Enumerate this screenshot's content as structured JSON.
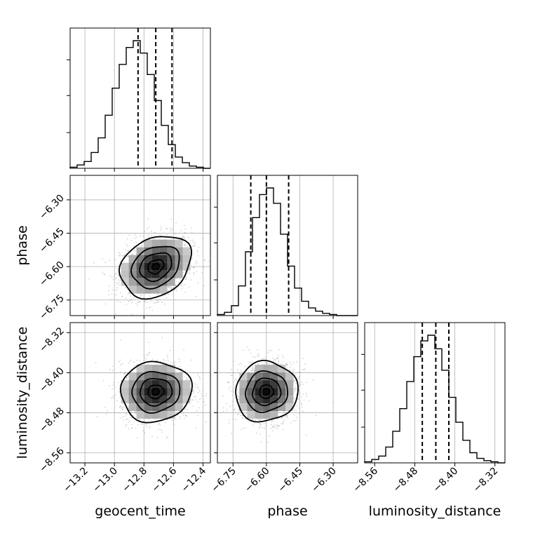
{
  "chart_data": {
    "type": "corner",
    "parameters": [
      {
        "name": "geocent_time",
        "label": "geocent_time",
        "range": [
          -13.3,
          -12.35
        ],
        "ticks": [
          -13.2,
          -13.0,
          -12.8,
          -12.6,
          -12.4
        ],
        "tick_labels": [
          "−13.2",
          "−13.0",
          "−12.8",
          "−12.6",
          "−12.4"
        ],
        "mean": -12.72,
        "std": 0.12,
        "quantiles": [
          -12.84,
          -12.72,
          -12.61
        ]
      },
      {
        "name": "phase",
        "label": "phase",
        "range": [
          -6.82,
          -6.19
        ],
        "ticks": [
          -6.75,
          -6.6,
          -6.45,
          -6.3
        ],
        "tick_labels": [
          "−6.75",
          "−6.60",
          "−6.45",
          "−6.30"
        ],
        "mean": -6.6,
        "std": 0.07,
        "quantiles": [
          -6.67,
          -6.6,
          -6.5
        ]
      },
      {
        "name": "luminosity_distance",
        "label": "luminosity_distance",
        "range": [
          -8.58,
          -8.3
        ],
        "ticks": [
          -8.56,
          -8.48,
          -8.4,
          -8.32
        ],
        "tick_labels": [
          "−8.56",
          "−8.48",
          "−8.40",
          "−8.32"
        ],
        "mean": -8.438,
        "std": 0.03,
        "quantiles": [
          -8.465,
          -8.438,
          -8.412
        ]
      }
    ],
    "histograms": [
      {
        "parameter": "geocent_time",
        "bins": 20,
        "counts": [
          1,
          3,
          6,
          14,
          27,
          47,
          71,
          92,
          107,
          113,
          102,
          83,
          60,
          38,
          21,
          10,
          5,
          2,
          1,
          0
        ]
      },
      {
        "parameter": "phase",
        "bins": 20,
        "counts": [
          1,
          3,
          9,
          27,
          58,
          89,
          110,
          116,
          102,
          74,
          45,
          25,
          13,
          7,
          4,
          2,
          1,
          0,
          0,
          0
        ]
      },
      {
        "parameter": "luminosity_distance",
        "bins": 20,
        "counts": [
          1,
          3,
          6,
          14,
          28,
          48,
          72,
          94,
          108,
          113,
          101,
          82,
          58,
          36,
          20,
          9,
          4,
          2,
          1,
          0
        ]
      }
    ],
    "grid": true,
    "colors": {
      "points": "#9e9e9e",
      "lines": "#000000",
      "density": "#000000"
    }
  }
}
